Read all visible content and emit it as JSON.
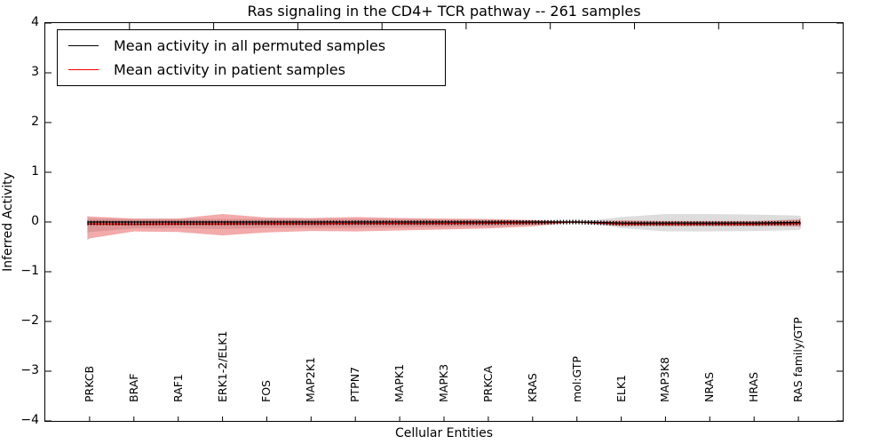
{
  "figure": {
    "background": "#ffffff",
    "axis_color": "#000000"
  },
  "chart_data": {
    "type": "line",
    "title": "Ras signaling in the CD4+ TCR pathway -- 261 samples",
    "xlabel": "Cellular Entities",
    "ylabel": "Inferred Activity",
    "xlim": [
      0,
      18
    ],
    "ylim": [
      -4,
      4
    ],
    "yticks": [
      4,
      3,
      2,
      1,
      0,
      -1,
      -2,
      -3,
      -4
    ],
    "ytick_labels": [
      "4",
      "3",
      "2",
      "1",
      "0",
      "−1",
      "−2",
      "−3",
      "−4"
    ],
    "top_ticks_x": [
      1.9,
      3.8,
      5.7,
      7.6,
      9.5,
      11.4,
      13.3,
      15.2,
      17.1
    ],
    "grid": false,
    "categories": [
      "PRKCB",
      "BRAF",
      "RAF1",
      "ERK1-2/ELK1",
      "FOS",
      "MAP2K1",
      "PTPN7",
      "MAPK1",
      "MAPK3",
      "PRKCA",
      "KRAS",
      "mol:GTP",
      "ELK1",
      "MAP3K8",
      "NRAS",
      "HRAS",
      "RAS family/GTP"
    ],
    "category_x": [
      1,
      2,
      3,
      4,
      5,
      6,
      7,
      8,
      9,
      10,
      11,
      12,
      13,
      14,
      15,
      16,
      17
    ],
    "x": [
      0.95,
      1,
      2,
      3,
      4,
      5,
      6,
      7,
      8,
      9,
      10,
      11,
      12,
      13,
      14,
      15,
      16,
      17,
      17.05
    ],
    "series": [
      {
        "name": "Mean activity in all permuted samples",
        "color": "#000000",
        "band_name": "permuted-std-band",
        "band_color": "#909090",
        "band_opacity": 0.3,
        "values": [
          0.0,
          0.0,
          0.0,
          0.0,
          0.0,
          0.0,
          0.0,
          0.0,
          0.0,
          0.0,
          0.0,
          0.0,
          0.0,
          -0.02,
          -0.02,
          -0.02,
          -0.02,
          -0.01,
          -0.01
        ],
        "band_upper": [
          0.08,
          0.07,
          0.06,
          0.06,
          0.06,
          0.06,
          0.06,
          0.06,
          0.06,
          0.05,
          0.05,
          0.03,
          0.0,
          0.1,
          0.16,
          0.16,
          0.15,
          0.13,
          0.12
        ],
        "band_lower": [
          -0.22,
          -0.2,
          -0.13,
          -0.13,
          -0.14,
          -0.12,
          -0.12,
          -0.12,
          -0.11,
          -0.1,
          -0.09,
          -0.06,
          0.0,
          -0.12,
          -0.19,
          -0.19,
          -0.18,
          -0.16,
          -0.15
        ]
      },
      {
        "name": "Mean activity in patient samples",
        "color": "#ff0000",
        "band_name": "patient-std-band",
        "band_color": "#dd2020",
        "band_opacity": 0.38,
        "values": [
          -0.04,
          -0.04,
          -0.045,
          -0.04,
          -0.04,
          -0.035,
          -0.035,
          -0.03,
          -0.03,
          -0.03,
          -0.025,
          -0.015,
          0.0,
          -0.04,
          -0.045,
          -0.045,
          -0.045,
          -0.03,
          -0.02
        ],
        "band_upper": [
          0.12,
          0.11,
          0.07,
          0.07,
          0.16,
          0.09,
          0.08,
          0.1,
          0.08,
          0.07,
          0.06,
          0.04,
          0.0,
          0.03,
          0.02,
          0.02,
          0.02,
          0.05,
          0.08
        ],
        "band_lower": [
          -0.36,
          -0.33,
          -0.19,
          -0.2,
          -0.27,
          -0.21,
          -0.18,
          -0.19,
          -0.17,
          -0.15,
          -0.13,
          -0.09,
          0.0,
          -0.08,
          -0.08,
          -0.08,
          -0.08,
          -0.09,
          -0.12
        ]
      }
    ],
    "legend": {
      "position": "upper left",
      "entries": [
        {
          "label": "Mean activity in all permuted samples",
          "color": "#000000"
        },
        {
          "label": "Mean activity in patient samples",
          "color": "#ff0000"
        }
      ]
    }
  }
}
